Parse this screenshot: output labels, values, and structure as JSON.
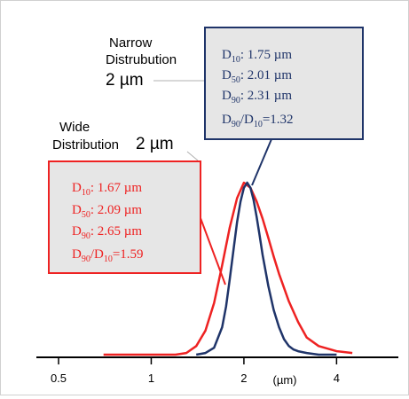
{
  "chart_data": {
    "type": "line",
    "xscale": "log",
    "xunit": "(µm)",
    "xticks": [
      {
        "value": 0.5,
        "label": "0.5"
      },
      {
        "value": 1,
        "label": "1"
      },
      {
        "value": 2,
        "label": "2"
      },
      {
        "value": 4,
        "label": "4"
      }
    ],
    "xlim": [
      0.5,
      5.0
    ],
    "ylim": [
      0,
      1
    ],
    "grid": false,
    "series": [
      {
        "name": "Narrow Distrubution 2 µm",
        "color": "#1f3469",
        "x": [
          1.4,
          1.5,
          1.6,
          1.7,
          1.75,
          1.8,
          1.85,
          1.9,
          1.95,
          2.0,
          2.05,
          2.1,
          2.15,
          2.2,
          2.25,
          2.3,
          2.4,
          2.5,
          2.6,
          2.7,
          2.8,
          2.9,
          3.0,
          3.2,
          3.5,
          4.0
        ],
        "y": [
          0.0,
          0.01,
          0.04,
          0.16,
          0.28,
          0.44,
          0.61,
          0.77,
          0.89,
          0.97,
          1.0,
          0.97,
          0.9,
          0.8,
          0.69,
          0.58,
          0.4,
          0.26,
          0.16,
          0.09,
          0.05,
          0.03,
          0.02,
          0.01,
          0.0,
          0.0
        ]
      },
      {
        "name": "Wide Distribution 2 µm",
        "color": "#ee2222",
        "x": [
          0.7,
          0.85,
          1.0,
          1.2,
          1.3,
          1.4,
          1.5,
          1.6,
          1.7,
          1.8,
          1.9,
          2.0,
          2.1,
          2.2,
          2.3,
          2.4,
          2.5,
          2.6,
          2.8,
          3.0,
          3.2,
          3.5,
          4.0,
          4.5
        ],
        "y": [
          0.0,
          0.0,
          0.0,
          0.0,
          0.01,
          0.05,
          0.14,
          0.3,
          0.52,
          0.74,
          0.91,
          1.0,
          0.97,
          0.89,
          0.79,
          0.68,
          0.57,
          0.47,
          0.31,
          0.19,
          0.1,
          0.05,
          0.02,
          0.01
        ]
      }
    ],
    "annotations": {
      "narrow": {
        "title_lines": [
          "Narrow",
          "Distrubution"
        ],
        "size": "2 µm",
        "stats": {
          "d10_label": "D",
          "d10_sub": "10",
          "d10_value": ": 1.75 µm",
          "d50_label": "D",
          "d50_sub": "50",
          "d50_value": ": 2.01 µm",
          "d90_label": "D",
          "d90_sub": "90",
          "d90_value": ": 2.31 µm",
          "ratio_num": "D",
          "ratio_num_sub": "90",
          "ratio_den": "/D",
          "ratio_den_sub": "10",
          "ratio_value": "=1.32"
        }
      },
      "wide": {
        "title_lines": [
          "Wide",
          "Distribution"
        ],
        "size": "2 µm",
        "stats": {
          "d10_label": "D",
          "d10_sub": "10",
          "d10_value": ": 1.67 µm",
          "d50_label": "D",
          "d50_sub": "50",
          "d50_value": ": 2.09 µm",
          "d90_label": "D",
          "d90_sub": "90",
          "d90_value": ": 2.65 µm",
          "ratio_num": "D",
          "ratio_num_sub": "90",
          "ratio_den": "/D",
          "ratio_den_sub": "10",
          "ratio_value": "=1.59"
        }
      }
    },
    "colors": {
      "narrow_box_bg": "#e6e6e6",
      "wide_box_bg": "#e6e6e6",
      "axis": "#000000"
    }
  }
}
